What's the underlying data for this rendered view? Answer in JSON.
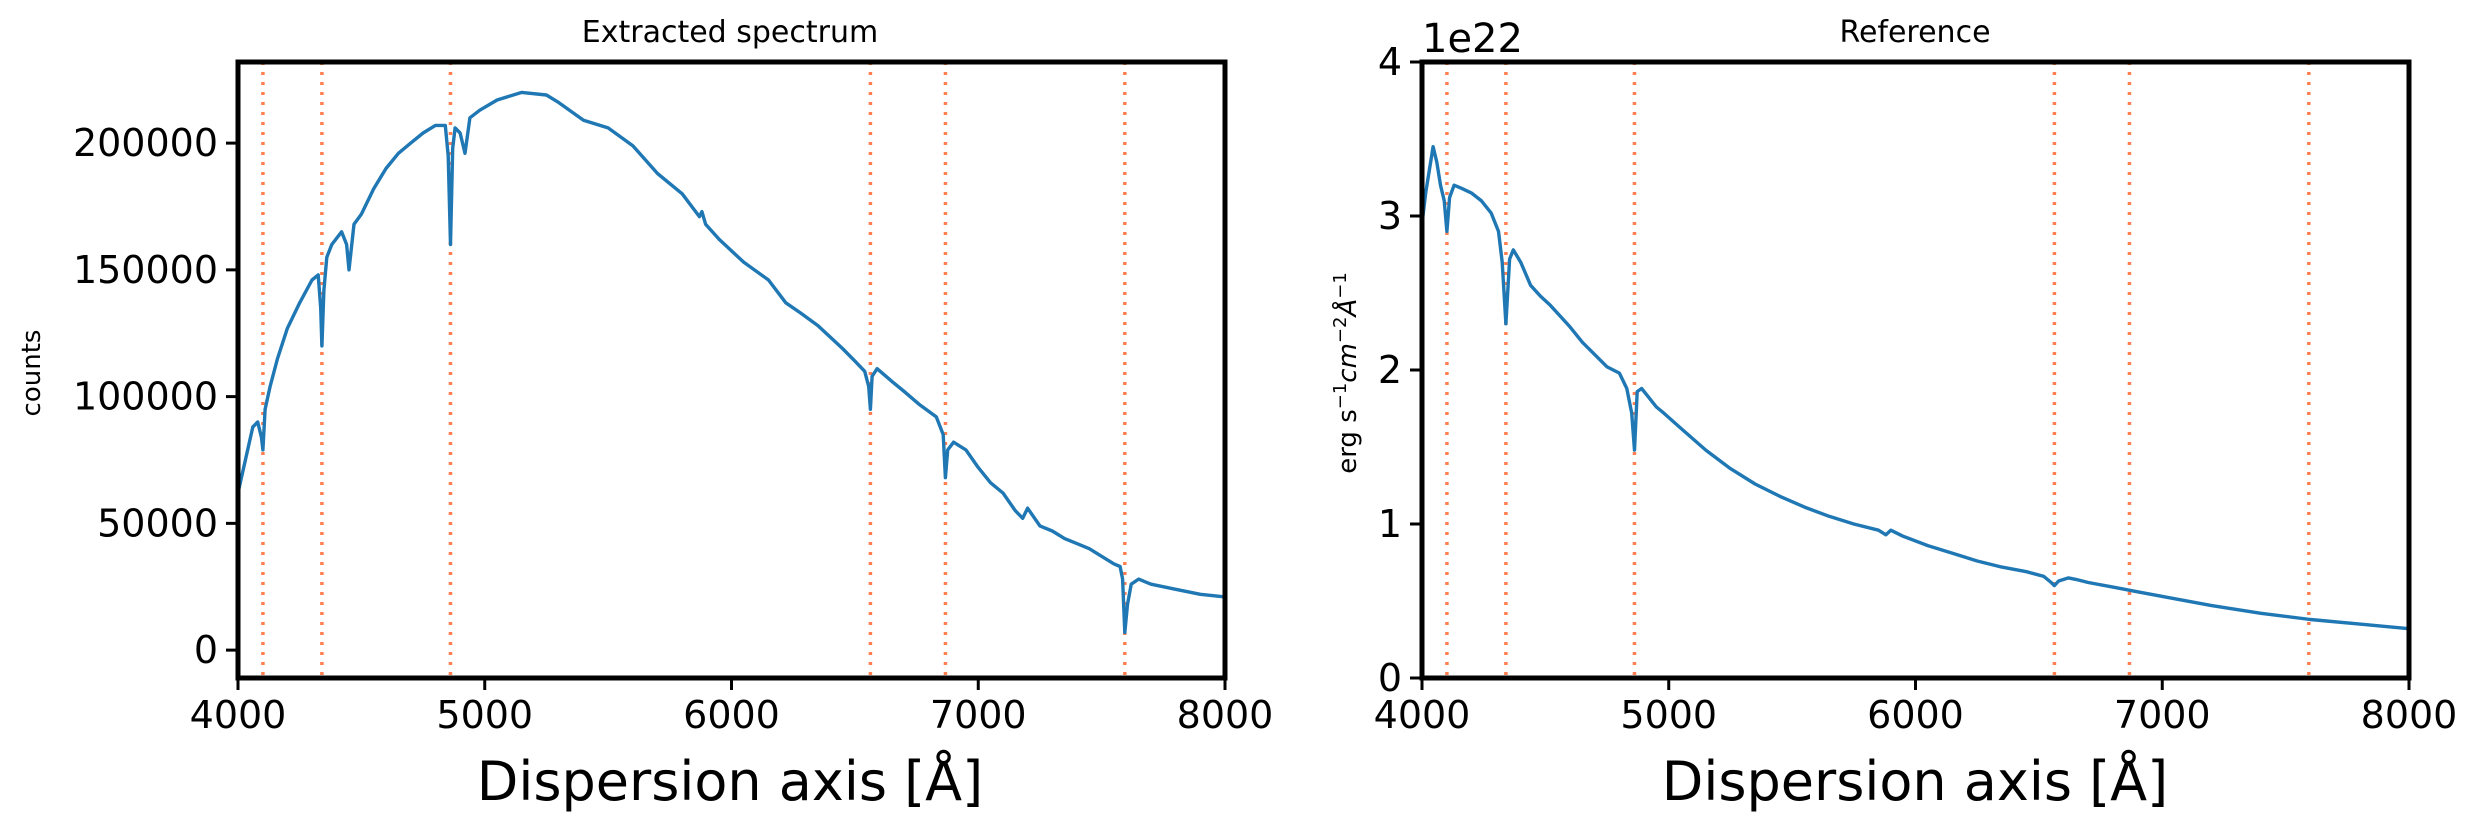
{
  "chart_data": [
    {
      "type": "line",
      "title": "Extracted spectrum",
      "xlabel": "Dispersion axis [Å]",
      "ylabel": "counts",
      "xlim": [
        4000,
        8000
      ],
      "ylim": [
        -11000,
        232000
      ],
      "xticks": [
        4000,
        5000,
        6000,
        7000,
        8000
      ],
      "xtick_labels": [
        "4000",
        "5000",
        "6000",
        "7000",
        "8000"
      ],
      "yticks": [
        0,
        50000,
        100000,
        150000,
        200000
      ],
      "ytick_labels": [
        "0",
        "50000",
        "100000",
        "150000",
        "200000"
      ],
      "reference_lines": [
        4101,
        4340,
        4861,
        6563,
        6867,
        7594
      ],
      "line_color": "#1f77b4",
      "reference_color": "#ff7f50",
      "series": [
        {
          "name": "spectrum",
          "x": [
            4000,
            4030,
            4060,
            4080,
            4095,
            4101,
            4110,
            4130,
            4160,
            4200,
            4250,
            4300,
            4325,
            4335,
            4340,
            4348,
            4360,
            4380,
            4420,
            4440,
            4450,
            4470,
            4500,
            4550,
            4600,
            4650,
            4700,
            4750,
            4800,
            4840,
            4852,
            4861,
            4870,
            4880,
            4900,
            4920,
            4940,
            4980,
            5050,
            5150,
            5250,
            5300,
            5400,
            5500,
            5600,
            5700,
            5800,
            5870,
            5880,
            5895,
            5950,
            6050,
            6150,
            6220,
            6280,
            6350,
            6450,
            6500,
            6540,
            6556,
            6563,
            6570,
            6590,
            6650,
            6700,
            6760,
            6830,
            6858,
            6867,
            6876,
            6900,
            6950,
            7000,
            7050,
            7100,
            7150,
            7180,
            7200,
            7250,
            7300,
            7350,
            7400,
            7450,
            7500,
            7550,
            7575,
            7585,
            7594,
            7605,
            7620,
            7650,
            7700,
            7800,
            7900,
            8000
          ],
          "y": [
            62000,
            75000,
            88000,
            90000,
            84000,
            79000,
            95000,
            104000,
            115000,
            127000,
            137000,
            146000,
            148000,
            135000,
            120000,
            142000,
            155000,
            160000,
            165000,
            160000,
            150000,
            168000,
            172000,
            182000,
            190000,
            196000,
            200000,
            204000,
            207000,
            207000,
            195000,
            160000,
            198000,
            206000,
            204000,
            196000,
            210000,
            213000,
            217000,
            220000,
            219000,
            216000,
            209000,
            206000,
            199000,
            188000,
            180000,
            171000,
            173000,
            168000,
            162000,
            153000,
            146000,
            137000,
            133000,
            128000,
            119000,
            114000,
            110000,
            104000,
            95000,
            108000,
            111000,
            106000,
            102000,
            97000,
            92000,
            85000,
            68000,
            79000,
            82000,
            79000,
            72000,
            66000,
            62000,
            55000,
            52000,
            56000,
            49000,
            47000,
            44000,
            42000,
            40000,
            37000,
            34000,
            33000,
            28000,
            7000,
            18000,
            26000,
            28000,
            26000,
            24000,
            22000,
            21000
          ]
        }
      ]
    },
    {
      "type": "line",
      "title": "Reference",
      "xlabel": "Dispersion axis [Å]",
      "ylabel": "erg s⁻¹cm⁻²Å⁻¹",
      "ylabel_parts": [
        "erg s",
        "−1",
        "cm",
        "−2",
        "Å",
        "−1"
      ],
      "offset_label": "1e22",
      "xlim": [
        4000,
        8000
      ],
      "ylim": [
        0,
        4
      ],
      "xticks": [
        4000,
        5000,
        6000,
        7000,
        8000
      ],
      "xtick_labels": [
        "4000",
        "5000",
        "6000",
        "7000",
        "8000"
      ],
      "yticks": [
        0,
        1,
        2,
        3,
        4
      ],
      "ytick_labels": [
        "0",
        "1",
        "2",
        "3",
        "4"
      ],
      "reference_lines": [
        4101,
        4340,
        4861,
        6563,
        6867,
        7594
      ],
      "line_color": "#1f77b4",
      "reference_color": "#ff7f50",
      "series": [
        {
          "name": "reference",
          "x": [
            4000,
            4015,
            4030,
            4045,
            4060,
            4075,
            4090,
            4101,
            4112,
            4130,
            4160,
            4200,
            4240,
            4280,
            4310,
            4325,
            4340,
            4355,
            4370,
            4400,
            4440,
            4480,
            4520,
            4560,
            4600,
            4650,
            4700,
            4750,
            4800,
            4830,
            4850,
            4861,
            4872,
            4890,
            4920,
            4950,
            4980,
            5050,
            5150,
            5250,
            5350,
            5450,
            5550,
            5650,
            5750,
            5850,
            5880,
            5900,
            5950,
            6050,
            6150,
            6250,
            6350,
            6450,
            6520,
            6550,
            6563,
            6580,
            6620,
            6650,
            6700,
            6800,
            6900,
            7000,
            7200,
            7400,
            7600,
            7800,
            8000
          ],
          "y": [
            2.95,
            3.15,
            3.3,
            3.45,
            3.35,
            3.2,
            3.1,
            2.9,
            3.12,
            3.2,
            3.18,
            3.15,
            3.1,
            3.02,
            2.9,
            2.7,
            2.3,
            2.72,
            2.78,
            2.7,
            2.55,
            2.48,
            2.42,
            2.35,
            2.28,
            2.18,
            2.1,
            2.02,
            1.98,
            1.88,
            1.72,
            1.48,
            1.86,
            1.88,
            1.82,
            1.76,
            1.72,
            1.62,
            1.48,
            1.36,
            1.26,
            1.18,
            1.11,
            1.05,
            1.0,
            0.96,
            0.93,
            0.96,
            0.92,
            0.86,
            0.81,
            0.76,
            0.72,
            0.69,
            0.66,
            0.62,
            0.6,
            0.63,
            0.65,
            0.64,
            0.62,
            0.59,
            0.56,
            0.53,
            0.47,
            0.42,
            0.38,
            0.35,
            0.32
          ]
        }
      ]
    }
  ]
}
